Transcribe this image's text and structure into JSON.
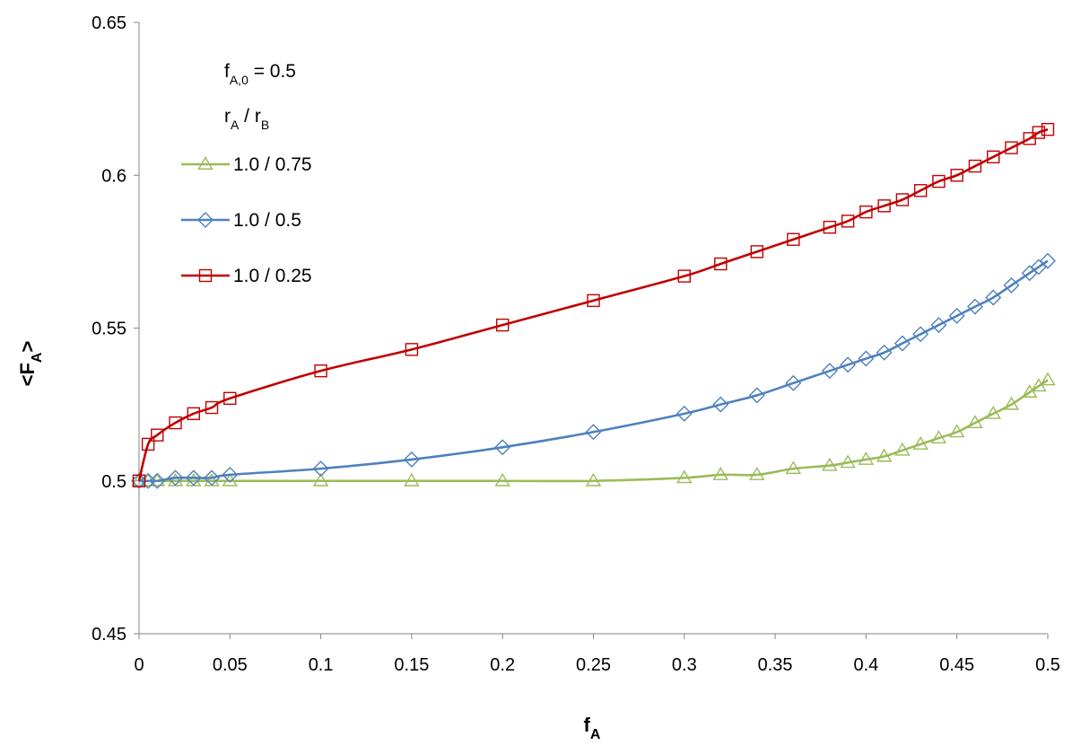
{
  "chart_data": {
    "type": "line",
    "xlabel": "f",
    "xlabel_sub": "A",
    "ylabel": "<F",
    "ylabel_sub": "A",
    "ylabel_end": ">",
    "xlim": [
      0,
      0.5
    ],
    "ylim": [
      0.45,
      0.65
    ],
    "x_ticks": [
      0,
      0.05,
      0.1,
      0.15,
      0.2,
      0.25,
      0.3,
      0.35,
      0.4,
      0.45,
      0.5
    ],
    "x_tick_labels": [
      "0",
      "0.05",
      "0.1",
      "0.15",
      "0.2",
      "0.25",
      "0.3",
      "0.35",
      "0.4",
      "0.45",
      "0.5"
    ],
    "y_ticks": [
      0.45,
      0.5,
      0.55,
      0.6,
      0.65
    ],
    "y_tick_labels": [
      "0.45",
      "0.5",
      "0.55",
      "0.6",
      "0.65"
    ],
    "grid": false,
    "legend_position": "top-left",
    "annotations": [
      {
        "main": "f",
        "sub": "A,0",
        "rest": " = 0.5"
      },
      {
        "main": "r",
        "sub": "A",
        "mid": "  /  r",
        "sub2": "B"
      }
    ],
    "series": [
      {
        "name": "1.0 / 0.75",
        "color": "#9BBB59",
        "marker": "triangle",
        "points": [
          [
            0,
            0.5
          ],
          [
            0.005,
            0.5
          ],
          [
            0.01,
            0.5
          ],
          [
            0.02,
            0.5
          ],
          [
            0.03,
            0.5
          ],
          [
            0.04,
            0.5
          ],
          [
            0.05,
            0.5
          ],
          [
            0.1,
            0.5
          ],
          [
            0.15,
            0.5
          ],
          [
            0.2,
            0.5
          ],
          [
            0.25,
            0.5
          ],
          [
            0.3,
            0.501
          ],
          [
            0.32,
            0.502
          ],
          [
            0.34,
            0.502
          ],
          [
            0.36,
            0.504
          ],
          [
            0.38,
            0.505
          ],
          [
            0.39,
            0.506
          ],
          [
            0.4,
            0.507
          ],
          [
            0.41,
            0.508
          ],
          [
            0.42,
            0.51
          ],
          [
            0.43,
            0.512
          ],
          [
            0.44,
            0.514
          ],
          [
            0.45,
            0.516
          ],
          [
            0.46,
            0.519
          ],
          [
            0.47,
            0.522
          ],
          [
            0.48,
            0.525
          ],
          [
            0.49,
            0.529
          ],
          [
            0.495,
            0.531
          ],
          [
            0.5,
            0.533
          ]
        ]
      },
      {
        "name": "1.0 / 0.5",
        "color": "#4F81BD",
        "marker": "diamond",
        "points": [
          [
            0,
            0.5
          ],
          [
            0.005,
            0.5
          ],
          [
            0.01,
            0.5
          ],
          [
            0.02,
            0.501
          ],
          [
            0.03,
            0.501
          ],
          [
            0.04,
            0.501
          ],
          [
            0.05,
            0.502
          ],
          [
            0.1,
            0.504
          ],
          [
            0.15,
            0.507
          ],
          [
            0.2,
            0.511
          ],
          [
            0.25,
            0.516
          ],
          [
            0.3,
            0.522
          ],
          [
            0.32,
            0.525
          ],
          [
            0.34,
            0.528
          ],
          [
            0.36,
            0.532
          ],
          [
            0.38,
            0.536
          ],
          [
            0.39,
            0.538
          ],
          [
            0.4,
            0.54
          ],
          [
            0.41,
            0.542
          ],
          [
            0.42,
            0.545
          ],
          [
            0.43,
            0.548
          ],
          [
            0.44,
            0.551
          ],
          [
            0.45,
            0.554
          ],
          [
            0.46,
            0.557
          ],
          [
            0.47,
            0.56
          ],
          [
            0.48,
            0.564
          ],
          [
            0.49,
            0.568
          ],
          [
            0.495,
            0.57
          ],
          [
            0.5,
            0.572
          ]
        ]
      },
      {
        "name": "1.0 / 0.25",
        "color": "#C00000",
        "marker": "square",
        "points": [
          [
            0,
            0.5
          ],
          [
            0.005,
            0.512
          ],
          [
            0.01,
            0.515
          ],
          [
            0.02,
            0.519
          ],
          [
            0.03,
            0.522
          ],
          [
            0.04,
            0.524
          ],
          [
            0.05,
            0.527
          ],
          [
            0.1,
            0.536
          ],
          [
            0.15,
            0.543
          ],
          [
            0.2,
            0.551
          ],
          [
            0.25,
            0.559
          ],
          [
            0.3,
            0.567
          ],
          [
            0.32,
            0.571
          ],
          [
            0.34,
            0.575
          ],
          [
            0.36,
            0.579
          ],
          [
            0.38,
            0.583
          ],
          [
            0.39,
            0.585
          ],
          [
            0.4,
            0.588
          ],
          [
            0.41,
            0.59
          ],
          [
            0.42,
            0.592
          ],
          [
            0.43,
            0.595
          ],
          [
            0.44,
            0.598
          ],
          [
            0.45,
            0.6
          ],
          [
            0.46,
            0.603
          ],
          [
            0.47,
            0.606
          ],
          [
            0.48,
            0.609
          ],
          [
            0.49,
            0.612
          ],
          [
            0.495,
            0.614
          ],
          [
            0.5,
            0.615
          ]
        ]
      }
    ]
  }
}
